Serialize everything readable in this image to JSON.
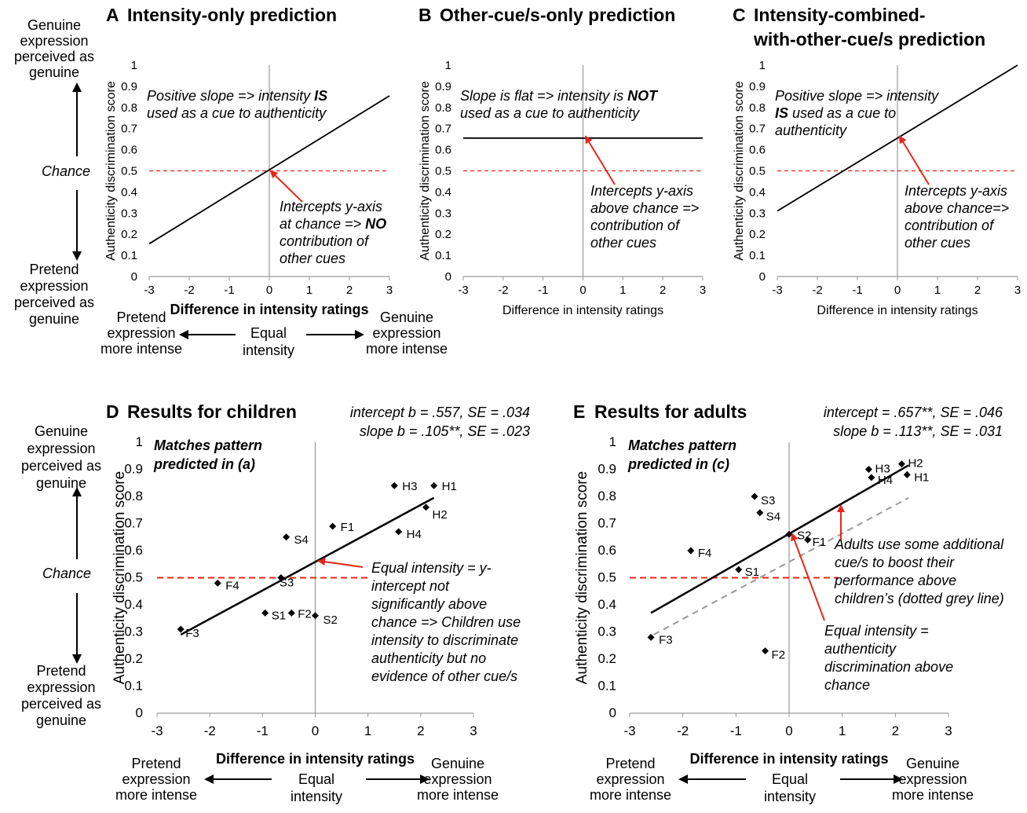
{
  "side_labels": {
    "genuine_top": [
      "Genuine",
      "expression",
      "perceived as",
      "genuine"
    ],
    "chance": "Chance",
    "pretend_bottom": [
      "Pretend",
      "expression",
      "perceived as",
      "genuine"
    ],
    "x_left": [
      "Pretend",
      "expression",
      "more intense"
    ],
    "x_mid": [
      "Equal",
      "intensity"
    ],
    "x_right": [
      "Genuine",
      "expression",
      "more intense"
    ],
    "x_left_d": [
      "Pretend",
      "expression",
      "more intense"
    ],
    "x_mid_d": [
      "Equal",
      "intensity"
    ],
    "x_right_d": [
      "Genuine",
      "expression",
      "more intense"
    ],
    "x_left_e": [
      "Pretend",
      "expression",
      "more intense"
    ],
    "x_mid_e": [
      "Equal",
      "intensity"
    ],
    "x_right_e": [
      "Genuine",
      "expression",
      "more intense"
    ]
  },
  "chart_data": [
    {
      "id": "A",
      "type": "line",
      "letter": "A",
      "title": "Intensity-only prediction",
      "xlabel": "Difference in intensity ratings",
      "ylabel": "Authenticity discrimination score",
      "xlim": [
        -3,
        3
      ],
      "ylim": [
        0,
        1
      ],
      "xticks": [
        "-3",
        "-2",
        "-1",
        "0",
        "1",
        "2",
        "3"
      ],
      "yticks": [
        "0",
        "0.1",
        "0.2",
        "0.3",
        "0.4",
        "0.5",
        "0.6",
        "0.7",
        "0.8",
        "0.9",
        "1"
      ],
      "chance": 0.5,
      "series": [
        {
          "name": "prediction",
          "x": [
            -3,
            3
          ],
          "y": [
            0.155,
            0.855
          ]
        }
      ],
      "annotations": [
        {
          "lines": [
            "Positive slope => intensity ",
            "used as a cue to authenticity"
          ],
          "bold": "IS"
        },
        {
          "lines": [
            "Intercepts y-axis",
            "at chance => ",
            "contribution of",
            "other cues"
          ],
          "bold": "NO"
        }
      ]
    },
    {
      "id": "B",
      "type": "line",
      "letter": "B",
      "title": "Other-cue/s-only prediction",
      "xlabel": "Difference in intensity ratings",
      "ylabel": "Authenticity discrimination score",
      "xlim": [
        -3,
        3
      ],
      "ylim": [
        0,
        1
      ],
      "xticks": [
        "-3",
        "-2",
        "-1",
        "0",
        "1",
        "2",
        "3"
      ],
      "yticks": [
        "0",
        "0.1",
        "0.2",
        "0.3",
        "0.4",
        "0.5",
        "0.6",
        "0.7",
        "0.8",
        "0.9",
        "1"
      ],
      "chance": 0.5,
      "series": [
        {
          "name": "prediction",
          "x": [
            -3,
            3
          ],
          "y": [
            0.655,
            0.655
          ]
        }
      ],
      "annotations": [
        {
          "lines": [
            "Slope is flat => intensity is ",
            "used as a cue to authenticity"
          ],
          "bold": "NOT"
        },
        {
          "lines": [
            "Intercepts y-axis",
            "above chance =>",
            "contribution of",
            "other cues"
          ]
        }
      ]
    },
    {
      "id": "C",
      "type": "line",
      "letter": "C",
      "title": [
        "Intensity-combined-",
        "with-other-cue/s prediction"
      ],
      "xlabel": "Difference in intensity ratings",
      "ylabel": "Authenticity discrimination score",
      "xlim": [
        -3,
        3
      ],
      "ylim": [
        0,
        1
      ],
      "xticks": [
        "-3",
        "-2",
        "-1",
        "0",
        "1",
        "2",
        "3"
      ],
      "yticks": [
        "0",
        "0.1",
        "0.2",
        "0.3",
        "0.4",
        "0.5",
        "0.6",
        "0.7",
        "0.8",
        "0.9",
        "1"
      ],
      "chance": 0.5,
      "series": [
        {
          "name": "prediction",
          "x": [
            -3,
            3
          ],
          "y": [
            0.31,
            1.0
          ]
        }
      ],
      "annotations": [
        {
          "lines": [
            "Positive slope => intensity",
            " used as a cue to",
            "authenticity"
          ],
          "bold": "IS"
        },
        {
          "lines": [
            "Intercepts y-axis",
            "above chance=>",
            "contribution of",
            "other cues"
          ]
        }
      ]
    },
    {
      "id": "D",
      "type": "scatter",
      "letter": "D",
      "title": "Results for children",
      "stats": [
        "intercept b = .557, SE = .034",
        "slope b = .105**, SE = .023"
      ],
      "xlabel": "Difference in intensity ratings",
      "ylabel": "Authenticity discrimination score",
      "xlim": [
        -3,
        3
      ],
      "ylim": [
        0,
        1
      ],
      "xticks": [
        "-3",
        "-2",
        "-1",
        "0",
        "1",
        "2",
        "3"
      ],
      "yticks": [
        "0",
        "0.1",
        "0.2",
        "0.3",
        "0.4",
        "0.5",
        "0.6",
        "0.7",
        "0.8",
        "0.9",
        "1"
      ],
      "chance": 0.5,
      "points": [
        {
          "label": "H1",
          "x": 2.25,
          "y": 0.84
        },
        {
          "label": "H3",
          "x": 1.5,
          "y": 0.84
        },
        {
          "label": "H2",
          "x": 2.1,
          "y": 0.76
        },
        {
          "label": "H4",
          "x": 1.58,
          "y": 0.67
        },
        {
          "label": "F1",
          "x": 0.33,
          "y": 0.69
        },
        {
          "label": "S4",
          "x": -0.55,
          "y": 0.65
        },
        {
          "label": "S3",
          "x": -0.65,
          "y": 0.5
        },
        {
          "label": "F4",
          "x": -1.85,
          "y": 0.48
        },
        {
          "label": "S1",
          "x": -0.95,
          "y": 0.37
        },
        {
          "label": "F2",
          "x": -0.45,
          "y": 0.37
        },
        {
          "label": "S2",
          "x": 0.0,
          "y": 0.36
        },
        {
          "label": "F3",
          "x": -2.55,
          "y": 0.31
        }
      ],
      "fit": {
        "x": [
          -2.55,
          2.25
        ],
        "y": [
          0.29,
          0.795
        ]
      },
      "note": [
        "Matches pattern",
        "predicted in (a)"
      ],
      "annotations": [
        {
          "lines": [
            "Equal intensity = y-",
            "intercept not",
            "significantly above",
            "chance => Children use",
            "intensity to discriminate",
            "authenticity but no",
            "evidence of other cue/s"
          ]
        }
      ]
    },
    {
      "id": "E",
      "type": "scatter",
      "letter": "E",
      "title": "Results for adults",
      "stats": [
        "intercept = .657**, SE = .046",
        "slope b = .113**, SE = .031"
      ],
      "xlabel": "Difference in intensity ratings",
      "ylabel": "Authenticity discrimination score",
      "xlim": [
        -3,
        3
      ],
      "ylim": [
        0,
        1
      ],
      "xticks": [
        "-3",
        "-2",
        "-1",
        "0",
        "1",
        "2",
        "3"
      ],
      "yticks": [
        "0",
        "0.1",
        "0.2",
        "0.3",
        "0.4",
        "0.5",
        "0.6",
        "0.7",
        "0.8",
        "0.9",
        "1"
      ],
      "chance": 0.5,
      "points": [
        {
          "label": "H2",
          "x": 2.12,
          "y": 0.92
        },
        {
          "label": "H3",
          "x": 1.5,
          "y": 0.9
        },
        {
          "label": "H1",
          "x": 2.22,
          "y": 0.88
        },
        {
          "label": "H4",
          "x": 1.55,
          "y": 0.87
        },
        {
          "label": "S3",
          "x": -0.65,
          "y": 0.8
        },
        {
          "label": "S4",
          "x": -0.55,
          "y": 0.74
        },
        {
          "label": "S2",
          "x": 0.0,
          "y": 0.66
        },
        {
          "label": "F1",
          "x": 0.35,
          "y": 0.64
        },
        {
          "label": "F4",
          "x": -1.85,
          "y": 0.6
        },
        {
          "label": "S1",
          "x": -0.95,
          "y": 0.53
        },
        {
          "label": "F3",
          "x": -2.6,
          "y": 0.28
        },
        {
          "label": "F2",
          "x": -0.45,
          "y": 0.23
        }
      ],
      "fit": {
        "x": [
          -2.6,
          2.25
        ],
        "y": [
          0.37,
          0.915
        ]
      },
      "children_fit": {
        "x": [
          -2.55,
          2.25
        ],
        "y": [
          0.29,
          0.795
        ]
      },
      "note": [
        "Matches pattern",
        "predicted in (c)"
      ],
      "annotations": [
        {
          "lines": [
            "Adults use some additional",
            "cue/s to boost their",
            "performance above",
            "children’s (dotted grey line)"
          ]
        },
        {
          "lines": [
            "Equal intensity =",
            "authenticity",
            "discrimination above",
            "chance"
          ]
        }
      ]
    }
  ]
}
